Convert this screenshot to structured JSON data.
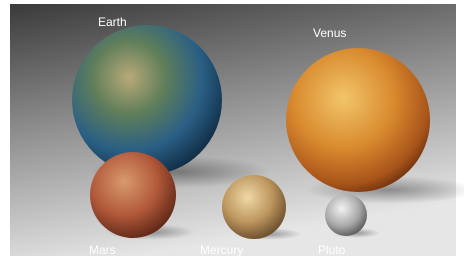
{
  "planets": [
    {
      "label": "Earth"
    },
    {
      "label": "Venus"
    },
    {
      "label": "Mars"
    },
    {
      "label": "Mercury"
    },
    {
      "label": "Pluto"
    }
  ]
}
